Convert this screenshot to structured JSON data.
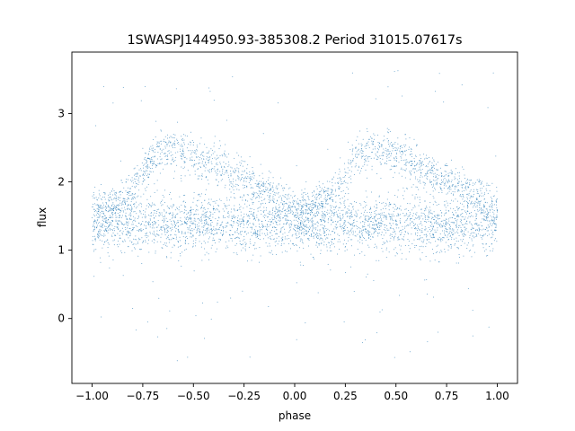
{
  "chart_data": {
    "type": "scatter",
    "title": "1SWASPJ144950.93-385308.2 Period 31015.07617s",
    "xlabel": "phase",
    "ylabel": "flux",
    "xlim": [
      -1.1,
      1.1
    ],
    "ylim": [
      -0.95,
      3.9
    ],
    "x_ticks": [
      -1.0,
      -0.75,
      -0.5,
      -0.25,
      0.0,
      0.25,
      0.5,
      0.75,
      1.0
    ],
    "x_tick_labels": [
      "−1.00",
      "−0.75",
      "−0.50",
      "−0.25",
      "0.00",
      "0.25",
      "0.50",
      "0.75",
      "1.00"
    ],
    "y_ticks": [
      0,
      1,
      2,
      3
    ],
    "y_tick_labels": [
      "0",
      "1",
      "2",
      "3"
    ],
    "grid": false,
    "marker_color": "#1f77b4",
    "marker_size": 0.5,
    "series": [
      {
        "phase_range": [
          -1.0,
          1.0
        ],
        "baseline_flux": 1.38,
        "baseline_scatter": 0.2,
        "upper_branch_profile": {
          "phase": [
            0.0,
            0.1,
            0.2,
            0.25,
            0.3,
            0.35,
            0.4,
            0.45,
            0.5,
            0.6,
            0.7,
            0.8,
            0.9,
            1.0
          ],
          "flux": [
            1.55,
            1.65,
            1.85,
            2.1,
            2.35,
            2.48,
            2.5,
            2.45,
            2.38,
            2.25,
            2.1,
            1.95,
            1.8,
            1.6
          ]
        },
        "upper_branch_scatter": 0.15,
        "outlier_range": [
          -0.75,
          3.65
        ]
      }
    ]
  }
}
